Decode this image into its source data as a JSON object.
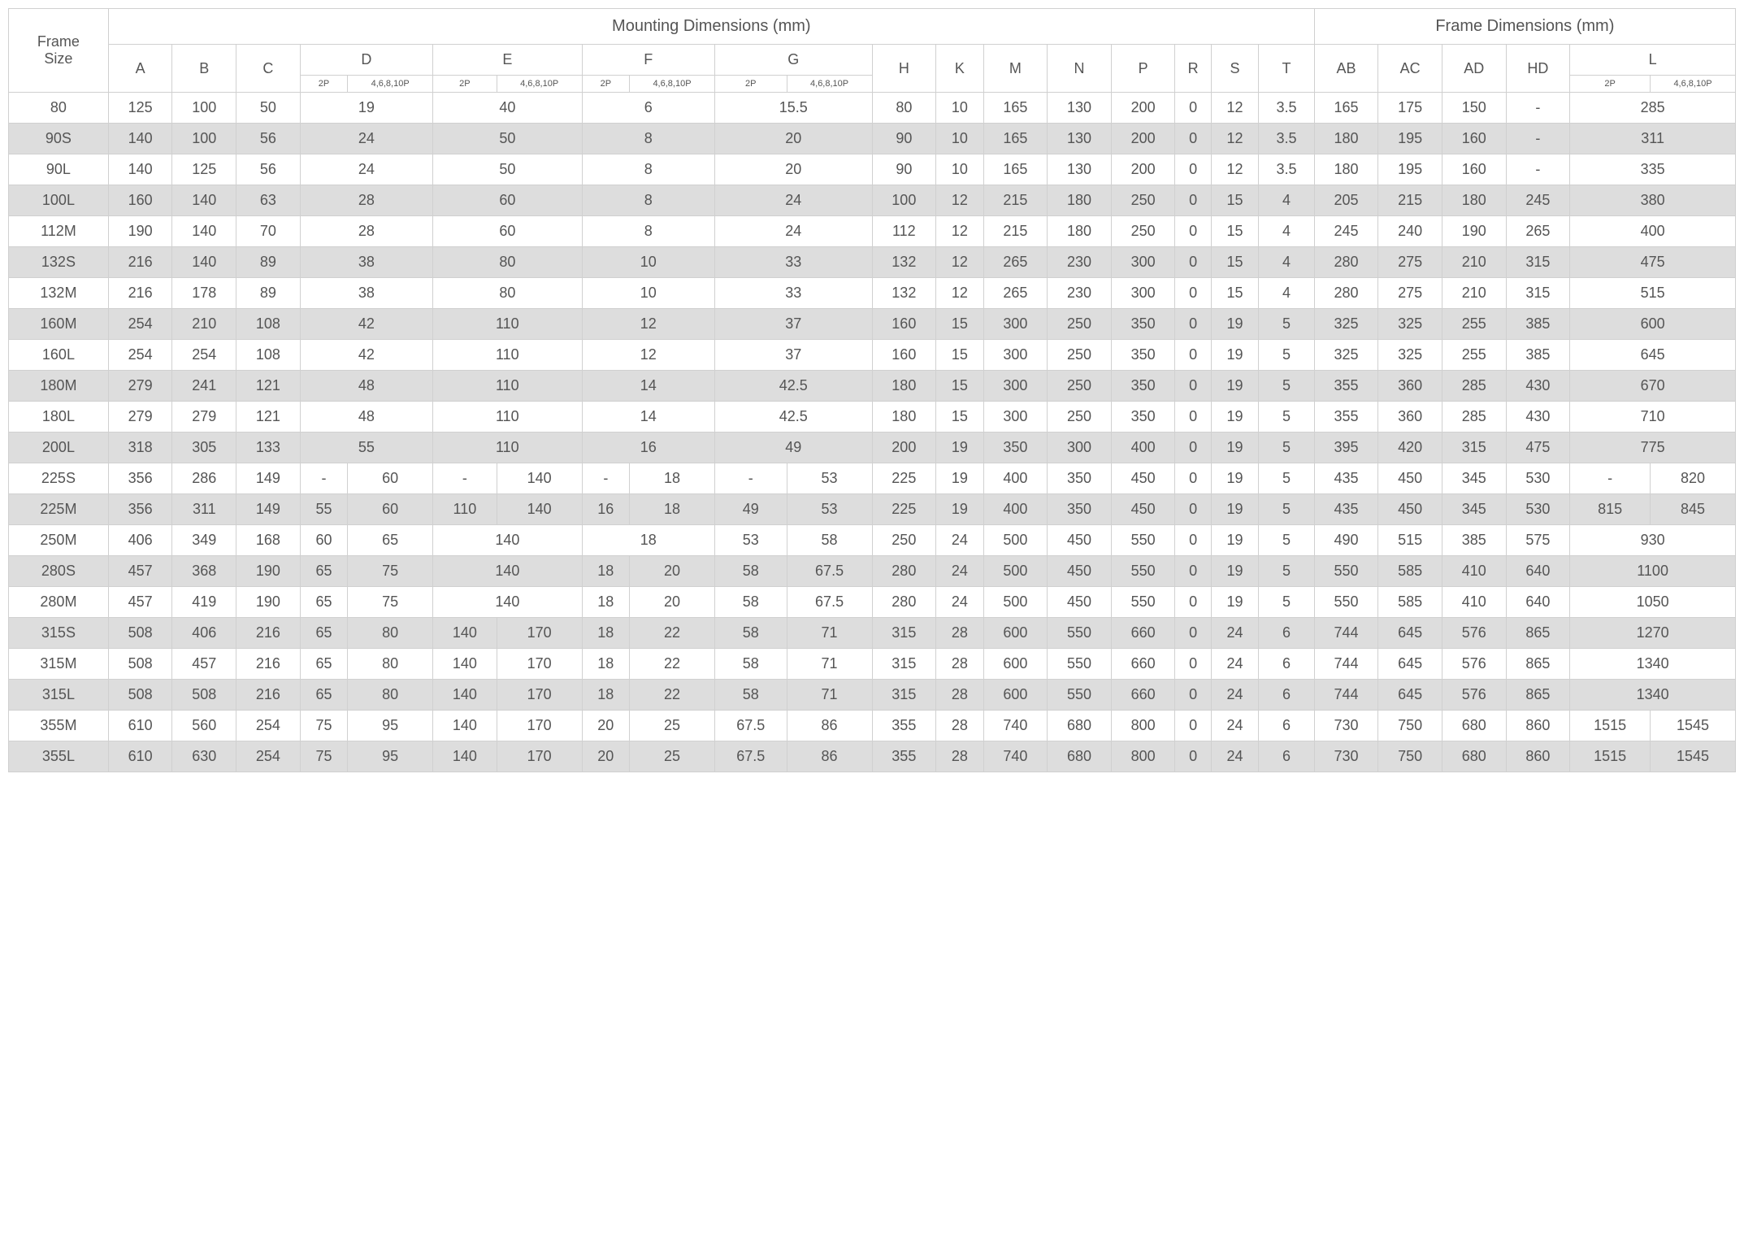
{
  "headers": {
    "frameSize": "Frame\nSize",
    "mounting": "Mounting Dimensions (mm)",
    "frame": "Frame Dimensions (mm)",
    "cols": [
      "A",
      "B",
      "C",
      "D",
      "E",
      "F",
      "G",
      "H",
      "K",
      "M",
      "N",
      "P",
      "R",
      "S",
      "T"
    ],
    "frameCols": [
      "AB",
      "AC",
      "AD",
      "HD",
      "L"
    ],
    "sub2P": "2P",
    "sub468": "4,6,8,10P"
  },
  "rows": [
    {
      "name": "80",
      "A": "125",
      "B": "100",
      "C": "50",
      "D": "19",
      "E": "40",
      "F": "6",
      "G": "15.5",
      "H": "80",
      "K": "10",
      "M": "165",
      "N": "130",
      "P": "200",
      "R": "0",
      "S": "12",
      "T": "3.5",
      "AB": "165",
      "AC": "175",
      "AD": "150",
      "HD": "-",
      "L": "285"
    },
    {
      "name": "90S",
      "A": "140",
      "B": "100",
      "C": "56",
      "D": "24",
      "E": "50",
      "F": "8",
      "G": "20",
      "H": "90",
      "K": "10",
      "M": "165",
      "N": "130",
      "P": "200",
      "R": "0",
      "S": "12",
      "T": "3.5",
      "AB": "180",
      "AC": "195",
      "AD": "160",
      "HD": "-",
      "L": "311"
    },
    {
      "name": "90L",
      "A": "140",
      "B": "125",
      "C": "56",
      "D": "24",
      "E": "50",
      "F": "8",
      "G": "20",
      "H": "90",
      "K": "10",
      "M": "165",
      "N": "130",
      "P": "200",
      "R": "0",
      "S": "12",
      "T": "3.5",
      "AB": "180",
      "AC": "195",
      "AD": "160",
      "HD": "-",
      "L": "335"
    },
    {
      "name": "100L",
      "A": "160",
      "B": "140",
      "C": "63",
      "D": "28",
      "E": "60",
      "F": "8",
      "G": "24",
      "H": "100",
      "K": "12",
      "M": "215",
      "N": "180",
      "P": "250",
      "R": "0",
      "S": "15",
      "T": "4",
      "AB": "205",
      "AC": "215",
      "AD": "180",
      "HD": "245",
      "L": "380"
    },
    {
      "name": "112M",
      "A": "190",
      "B": "140",
      "C": "70",
      "D": "28",
      "E": "60",
      "F": "8",
      "G": "24",
      "H": "112",
      "K": "12",
      "M": "215",
      "N": "180",
      "P": "250",
      "R": "0",
      "S": "15",
      "T": "4",
      "AB": "245",
      "AC": "240",
      "AD": "190",
      "HD": "265",
      "L": "400"
    },
    {
      "name": "132S",
      "A": "216",
      "B": "140",
      "C": "89",
      "D": "38",
      "E": "80",
      "F": "10",
      "G": "33",
      "H": "132",
      "K": "12",
      "M": "265",
      "N": "230",
      "P": "300",
      "R": "0",
      "S": "15",
      "T": "4",
      "AB": "280",
      "AC": "275",
      "AD": "210",
      "HD": "315",
      "L": "475"
    },
    {
      "name": "132M",
      "A": "216",
      "B": "178",
      "C": "89",
      "D": "38",
      "E": "80",
      "F": "10",
      "G": "33",
      "H": "132",
      "K": "12",
      "M": "265",
      "N": "230",
      "P": "300",
      "R": "0",
      "S": "15",
      "T": "4",
      "AB": "280",
      "AC": "275",
      "AD": "210",
      "HD": "315",
      "L": "515"
    },
    {
      "name": "160M",
      "A": "254",
      "B": "210",
      "C": "108",
      "D": "42",
      "E": "110",
      "F": "12",
      "G": "37",
      "H": "160",
      "K": "15",
      "M": "300",
      "N": "250",
      "P": "350",
      "R": "0",
      "S": "19",
      "T": "5",
      "AB": "325",
      "AC": "325",
      "AD": "255",
      "HD": "385",
      "L": "600"
    },
    {
      "name": "160L",
      "A": "254",
      "B": "254",
      "C": "108",
      "D": "42",
      "E": "110",
      "F": "12",
      "G": "37",
      "H": "160",
      "K": "15",
      "M": "300",
      "N": "250",
      "P": "350",
      "R": "0",
      "S": "19",
      "T": "5",
      "AB": "325",
      "AC": "325",
      "AD": "255",
      "HD": "385",
      "L": "645"
    },
    {
      "name": "180M",
      "A": "279",
      "B": "241",
      "C": "121",
      "D": "48",
      "E": "110",
      "F": "14",
      "G": "42.5",
      "H": "180",
      "K": "15",
      "M": "300",
      "N": "250",
      "P": "350",
      "R": "0",
      "S": "19",
      "T": "5",
      "AB": "355",
      "AC": "360",
      "AD": "285",
      "HD": "430",
      "L": "670"
    },
    {
      "name": "180L",
      "A": "279",
      "B": "279",
      "C": "121",
      "D": "48",
      "E": "110",
      "F": "14",
      "G": "42.5",
      "H": "180",
      "K": "15",
      "M": "300",
      "N": "250",
      "P": "350",
      "R": "0",
      "S": "19",
      "T": "5",
      "AB": "355",
      "AC": "360",
      "AD": "285",
      "HD": "430",
      "L": "710"
    },
    {
      "name": "200L",
      "A": "318",
      "B": "305",
      "C": "133",
      "D": "55",
      "E": "110",
      "F": "16",
      "G": "49",
      "H": "200",
      "K": "19",
      "M": "350",
      "N": "300",
      "P": "400",
      "R": "0",
      "S": "19",
      "T": "5",
      "AB": "395",
      "AC": "420",
      "AD": "315",
      "HD": "475",
      "L": "775"
    },
    {
      "name": "225S",
      "A": "356",
      "B": "286",
      "C": "149",
      "D2P": "-",
      "D468": "60",
      "E2P": "-",
      "E468": "140",
      "F2P": "-",
      "F468": "18",
      "G2P": "-",
      "G468": "53",
      "H": "225",
      "K": "19",
      "M": "400",
      "N": "350",
      "P": "450",
      "R": "0",
      "S": "19",
      "T": "5",
      "AB": "435",
      "AC": "450",
      "AD": "345",
      "HD": "530",
      "L2P": "-",
      "L468": "820",
      "split": true
    },
    {
      "name": "225M",
      "A": "356",
      "B": "311",
      "C": "149",
      "D2P": "55",
      "D468": "60",
      "E2P": "110",
      "E468": "140",
      "F2P": "16",
      "F468": "18",
      "G2P": "49",
      "G468": "53",
      "H": "225",
      "K": "19",
      "M": "400",
      "N": "350",
      "P": "450",
      "R": "0",
      "S": "19",
      "T": "5",
      "AB": "435",
      "AC": "450",
      "AD": "345",
      "HD": "530",
      "L2P": "815",
      "L468": "845",
      "split": true
    },
    {
      "name": "250M",
      "A": "406",
      "B": "349",
      "C": "168",
      "D2P": "60",
      "D468": "65",
      "E": "140",
      "F": "18",
      "G2P": "53",
      "G468": "58",
      "H": "250",
      "K": "24",
      "M": "500",
      "N": "450",
      "P": "550",
      "R": "0",
      "S": "19",
      "T": "5",
      "AB": "490",
      "AC": "515",
      "AD": "385",
      "HD": "575",
      "L": "930",
      "splitDG": true
    },
    {
      "name": "280S",
      "A": "457",
      "B": "368",
      "C": "190",
      "D2P": "65",
      "D468": "75",
      "E": "140",
      "F2P": "18",
      "F468": "20",
      "G2P": "58",
      "G468": "67.5",
      "H": "280",
      "K": "24",
      "M": "500",
      "N": "450",
      "P": "550",
      "R": "0",
      "S": "19",
      "T": "5",
      "AB": "550",
      "AC": "585",
      "AD": "410",
      "HD": "640",
      "L": "1100",
      "splitDFG": true
    },
    {
      "name": "280M",
      "A": "457",
      "B": "419",
      "C": "190",
      "D2P": "65",
      "D468": "75",
      "E": "140",
      "F2P": "18",
      "F468": "20",
      "G2P": "58",
      "G468": "67.5",
      "H": "280",
      "K": "24",
      "M": "500",
      "N": "450",
      "P": "550",
      "R": "0",
      "S": "19",
      "T": "5",
      "AB": "550",
      "AC": "585",
      "AD": "410",
      "HD": "640",
      "L": "1050",
      "splitDFG": true
    },
    {
      "name": "315S",
      "A": "508",
      "B": "406",
      "C": "216",
      "D2P": "65",
      "D468": "80",
      "E2P": "140",
      "E468": "170",
      "F2P": "18",
      "F468": "22",
      "G2P": "58",
      "G468": "71",
      "H": "315",
      "K": "28",
      "M": "600",
      "N": "550",
      "P": "660",
      "R": "0",
      "S": "24",
      "T": "6",
      "AB": "744",
      "AC": "645",
      "AD": "576",
      "HD": "865",
      "L": "1270",
      "split": true,
      "noLsplit": true
    },
    {
      "name": "315M",
      "A": "508",
      "B": "457",
      "C": "216",
      "D2P": "65",
      "D468": "80",
      "E2P": "140",
      "E468": "170",
      "F2P": "18",
      "F468": "22",
      "G2P": "58",
      "G468": "71",
      "H": "315",
      "K": "28",
      "M": "600",
      "N": "550",
      "P": "660",
      "R": "0",
      "S": "24",
      "T": "6",
      "AB": "744",
      "AC": "645",
      "AD": "576",
      "HD": "865",
      "L": "1340",
      "split": true,
      "noLsplit": true
    },
    {
      "name": "315L",
      "A": "508",
      "B": "508",
      "C": "216",
      "D2P": "65",
      "D468": "80",
      "E2P": "140",
      "E468": "170",
      "F2P": "18",
      "F468": "22",
      "G2P": "58",
      "G468": "71",
      "H": "315",
      "K": "28",
      "M": "600",
      "N": "550",
      "P": "660",
      "R": "0",
      "S": "24",
      "T": "6",
      "AB": "744",
      "AC": "645",
      "AD": "576",
      "HD": "865",
      "L": "1340",
      "split": true,
      "noLsplit": true
    },
    {
      "name": "355M",
      "A": "610",
      "B": "560",
      "C": "254",
      "D2P": "75",
      "D468": "95",
      "E2P": "140",
      "E468": "170",
      "F2P": "20",
      "F468": "25",
      "G2P": "67.5",
      "G468": "86",
      "H": "355",
      "K": "28",
      "M": "740",
      "N": "680",
      "P": "800",
      "R": "0",
      "S": "24",
      "T": "6",
      "AB": "730",
      "AC": "750",
      "AD": "680",
      "HD": "860",
      "L2P": "1515",
      "L468": "1545",
      "split": true
    },
    {
      "name": "355L",
      "A": "610",
      "B": "630",
      "C": "254",
      "D2P": "75",
      "D468": "95",
      "E2P": "140",
      "E468": "170",
      "F2P": "20",
      "F468": "25",
      "G2P": "67.5",
      "G468": "86",
      "H": "355",
      "K": "28",
      "M": "740",
      "N": "680",
      "P": "800",
      "R": "0",
      "S": "24",
      "T": "6",
      "AB": "730",
      "AC": "750",
      "AD": "680",
      "HD": "860",
      "L2P": "1515",
      "L468": "1545",
      "split": true
    }
  ]
}
